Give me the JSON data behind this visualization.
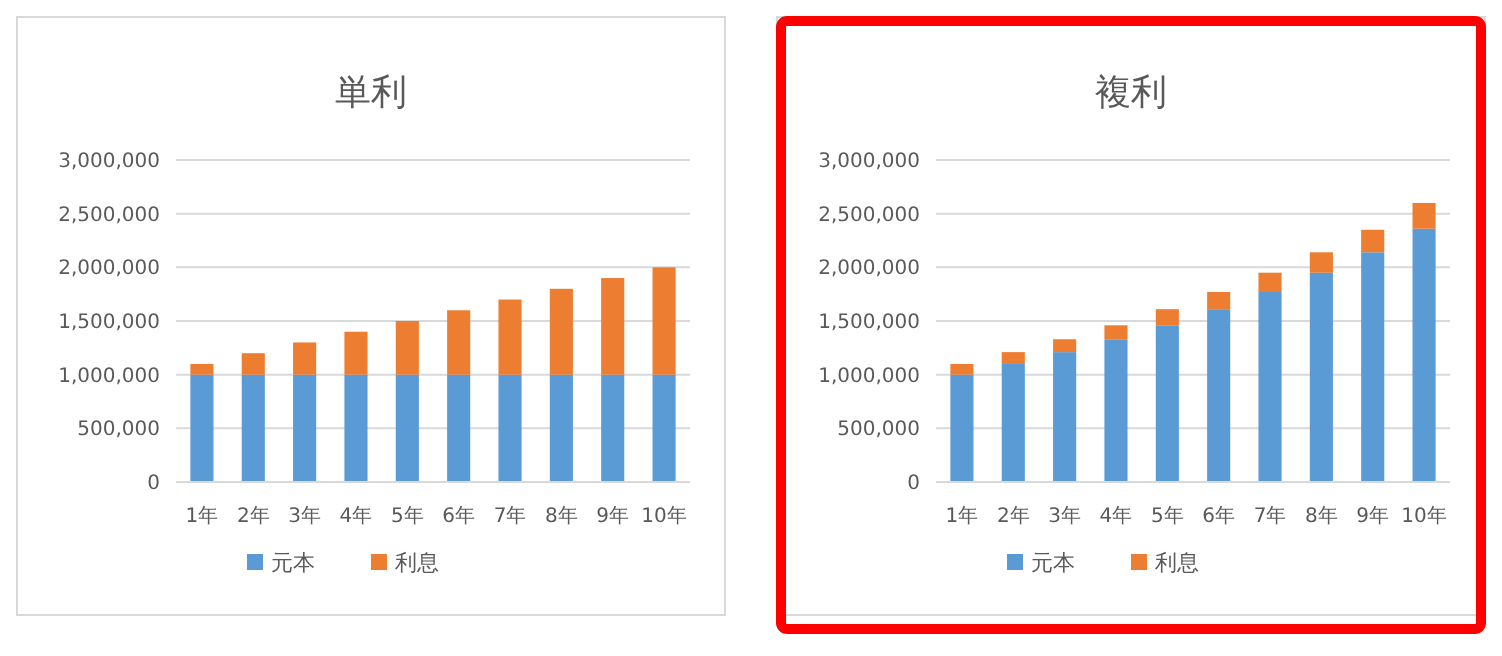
{
  "chart_data": [
    {
      "type": "bar",
      "title": "単利",
      "categories": [
        "1年",
        "2年",
        "3年",
        "4年",
        "5年",
        "6年",
        "7年",
        "8年",
        "9年",
        "10年"
      ],
      "stacked": true,
      "series": [
        {
          "name": "元本",
          "color": "#5b9bd5",
          "values": [
            1000000,
            1000000,
            1000000,
            1000000,
            1000000,
            1000000,
            1000000,
            1000000,
            1000000,
            1000000
          ]
        },
        {
          "name": "利息",
          "color": "#ed7d31",
          "values": [
            100000,
            200000,
            300000,
            400000,
            500000,
            600000,
            700000,
            800000,
            900000,
            1000000
          ]
        }
      ],
      "ylim": [
        0,
        3000000
      ],
      "yticks": [
        0,
        {
          "value": 500000,
          "label": "500,000"
        },
        {
          "value": 1000000,
          "label": "1,000,000"
        },
        {
          "value": 1500000,
          "label": "1,500,000"
        },
        {
          "value": 2000000,
          "label": "2,000,000"
        },
        {
          "value": 2500000,
          "label": "2,500,000"
        },
        {
          "value": 3000000,
          "label": "3,000,000"
        }
      ],
      "grid": "y",
      "legend": "bottom"
    },
    {
      "type": "bar",
      "title": "複利",
      "categories": [
        "1年",
        "2年",
        "3年",
        "4年",
        "5年",
        "6年",
        "7年",
        "8年",
        "9年",
        "10年"
      ],
      "stacked": true,
      "series": [
        {
          "name": "元本",
          "color": "#5b9bd5",
          "values": [
            1000000,
            1100000,
            1210000,
            1330000,
            1460000,
            1610000,
            1770000,
            1950000,
            2140000,
            2360000
          ]
        },
        {
          "name": "利息",
          "color": "#ed7d31",
          "values": [
            100000,
            110000,
            120000,
            130000,
            150000,
            160000,
            180000,
            190000,
            210000,
            240000
          ]
        }
      ],
      "ylim": [
        0,
        3000000
      ],
      "yticks": [
        0,
        {
          "value": 500000,
          "label": "500,000"
        },
        {
          "value": 1000000,
          "label": "1,000,000"
        },
        {
          "value": 1500000,
          "label": "1,500,000"
        },
        {
          "value": 2000000,
          "label": "2,000,000"
        },
        {
          "value": 2500000,
          "label": "2,500,000"
        },
        {
          "value": 3000000,
          "label": "3,000,000"
        }
      ],
      "grid": "y",
      "legend": "bottom"
    }
  ]
}
